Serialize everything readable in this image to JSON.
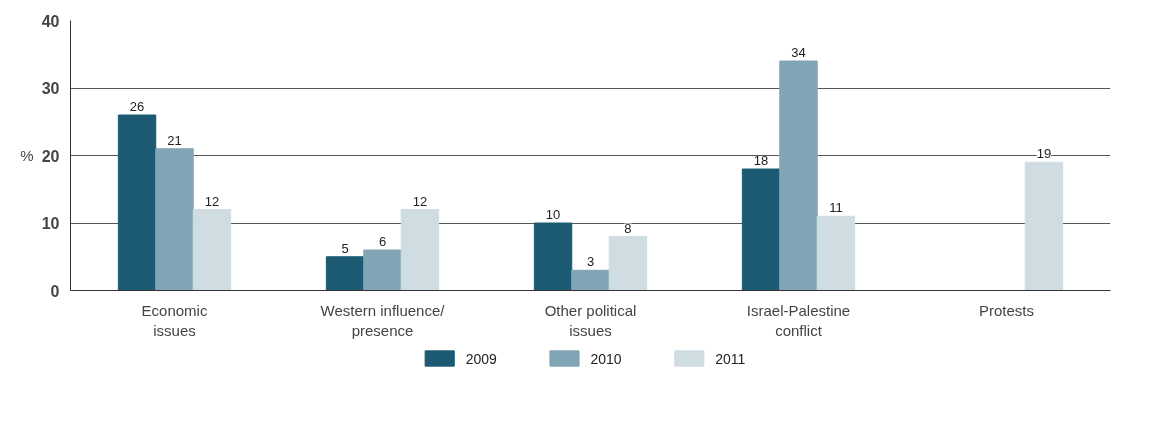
{
  "chart_data": {
    "type": "bar",
    "ylabel": "%",
    "categories": [
      "Economic\nissues",
      "Western influence/\npresence",
      "Other political\nissues",
      "Israel-Palestine\nconflict",
      "Protests"
    ],
    "series": [
      {
        "name": "2009",
        "color": "#1c5a73",
        "values": [
          26,
          5,
          10,
          18,
          null
        ]
      },
      {
        "name": "2010",
        "color": "#82a5b5",
        "values": [
          21,
          6,
          3,
          34,
          null
        ]
      },
      {
        "name": "2011",
        "color": "#cfdce1",
        "values": [
          12,
          12,
          8,
          11,
          19
        ]
      }
    ],
    "ylim": [
      0,
      40
    ],
    "yticks": [
      0,
      10,
      20,
      30,
      40
    ],
    "grid": "y",
    "legend": "bottom",
    "data_labels": true
  }
}
